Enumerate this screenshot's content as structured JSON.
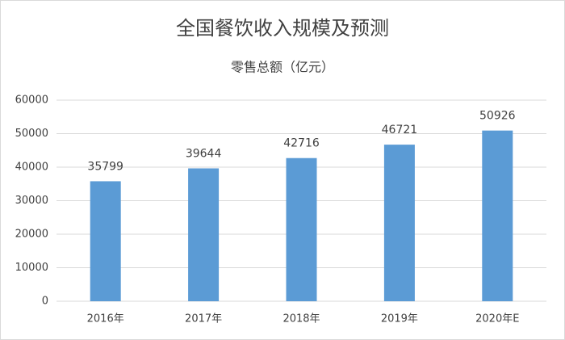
{
  "chart_data": {
    "type": "bar",
    "title": "全国餐饮收入规模及预测",
    "subtitle": "零售总额（亿元）",
    "categories": [
      "2016年",
      "2017年",
      "2018年",
      "2019年",
      "2020年E"
    ],
    "values": [
      35799,
      39644,
      42716,
      46721,
      50926
    ],
    "color": "#5b9bd5",
    "ylim": [
      0,
      60000
    ],
    "yticks": [
      0,
      10000,
      20000,
      30000,
      40000,
      50000,
      60000
    ],
    "grid": true,
    "data_labels": true
  }
}
